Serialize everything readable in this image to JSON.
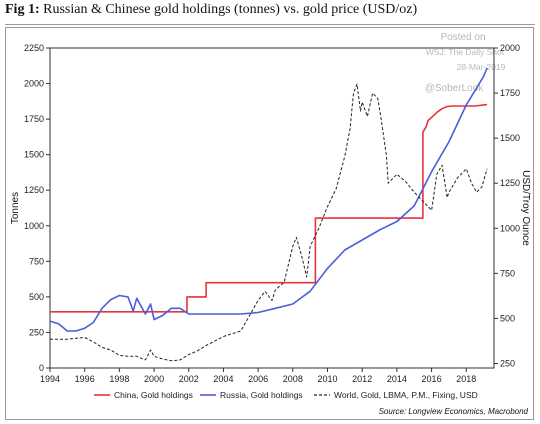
{
  "header": {
    "fig_label": "Fig 1:",
    "title": "Russian & Chinese gold holdings (tonnes) vs. gold price (USD/oz)"
  },
  "watermark": {
    "posted": "Posted on",
    "outlet": "WSJ: The Daily Shot",
    "date": "28-Mar-2019",
    "handle": "@SoberLook"
  },
  "chart_data": {
    "type": "line",
    "xlabel": "",
    "ylabel": "Tonnes",
    "ylabel_right": "USD/Troy Ounce",
    "xlim": [
      1994,
      2019.6
    ],
    "ylim": [
      0,
      2250
    ],
    "ylim_right": [
      225,
      2000
    ],
    "x_ticks": [
      "1994",
      "1996",
      "1998",
      "2000",
      "2002",
      "2004",
      "2006",
      "2008",
      "2010",
      "2012",
      "2014",
      "2016",
      "2018"
    ],
    "y_ticks": [
      "0",
      "250",
      "500",
      "750",
      "1000",
      "1250",
      "1500",
      "1750",
      "2000",
      "2250"
    ],
    "y_ticks_right": [
      "250",
      "500",
      "750",
      "1000",
      "1250",
      "1500",
      "1750",
      "2000"
    ],
    "grid": false,
    "legend_position": "bottom",
    "source": "Source: Longview Economics, Macrobond",
    "colors": {
      "china": "#e8323c",
      "russia": "#4a5fd8",
      "gold": "#222222"
    },
    "series": [
      {
        "name": "China, Gold holdings",
        "axis": "left",
        "style": "step",
        "x": [
          1994,
          2001.9,
          2001.9,
          2003.0,
          2003.0,
          2009.3,
          2009.3,
          2015.5,
          2015.5,
          2015.7,
          2015.8,
          2016.0,
          2016.3,
          2016.6,
          2016.9,
          2017.2,
          2018.5,
          2019.2
        ],
        "values": [
          395,
          395,
          500,
          500,
          600,
          600,
          1054,
          1054,
          1658,
          1700,
          1740,
          1762,
          1797,
          1823,
          1839,
          1842,
          1842,
          1852
        ]
      },
      {
        "name": "Russia, Gold holdings",
        "axis": "left",
        "x": [
          1994,
          1994.5,
          1995,
          1995.5,
          1996,
          1996.5,
          1997,
          1997.5,
          1998,
          1998.5,
          1998.8,
          1999,
          1999.5,
          1999.8,
          2000,
          2000.5,
          2001,
          2001.5,
          2002,
          2003,
          2004,
          2005,
          2006,
          2007,
          2008,
          2009,
          2010,
          2011,
          2012,
          2013,
          2014,
          2015,
          2016,
          2017,
          2018,
          2019,
          2019.2
        ],
        "values": [
          330,
          310,
          260,
          260,
          280,
          320,
          420,
          480,
          510,
          500,
          400,
          490,
          380,
          450,
          340,
          370,
          420,
          420,
          380,
          380,
          380,
          380,
          390,
          420,
          450,
          540,
          700,
          830,
          900,
          970,
          1030,
          1140,
          1380,
          1590,
          1850,
          2050,
          2110
        ]
      },
      {
        "name": "World, Gold, LBMA, P.M., Fixing, USD",
        "axis": "right",
        "style": "dashed",
        "x": [
          1994,
          1995,
          1996,
          1996.5,
          1997,
          1997.5,
          1998,
          1998.5,
          1999,
          1999.5,
          1999.8,
          2000,
          2000.5,
          2001,
          2001.5,
          2002,
          2002.5,
          2003,
          2004,
          2005,
          2006,
          2006.4,
          2006.8,
          2007,
          2007.5,
          2008,
          2008.2,
          2008.5,
          2008.8,
          2009,
          2009.5,
          2010,
          2010.5,
          2011,
          2011.3,
          2011.5,
          2011.7,
          2011.9,
          2012,
          2012.3,
          2012.6,
          2012.9,
          2013.1,
          2013.4,
          2013.5,
          2014,
          2014.5,
          2015,
          2015.5,
          2016,
          2016.3,
          2016.6,
          2016.9,
          2017,
          2017.5,
          2018,
          2018.3,
          2018.6,
          2018.9,
          2019.2
        ],
        "values": [
          385,
          385,
          395,
          370,
          340,
          325,
          295,
          290,
          290,
          270,
          325,
          290,
          275,
          265,
          270,
          300,
          320,
          350,
          400,
          430,
          600,
          650,
          600,
          660,
          700,
          900,
          950,
          850,
          730,
          900,
          1000,
          1120,
          1220,
          1400,
          1550,
          1750,
          1800,
          1650,
          1700,
          1620,
          1750,
          1720,
          1600,
          1400,
          1250,
          1300,
          1260,
          1200,
          1150,
          1100,
          1300,
          1350,
          1170,
          1200,
          1280,
          1330,
          1250,
          1200,
          1230,
          1330
        ]
      }
    ]
  }
}
